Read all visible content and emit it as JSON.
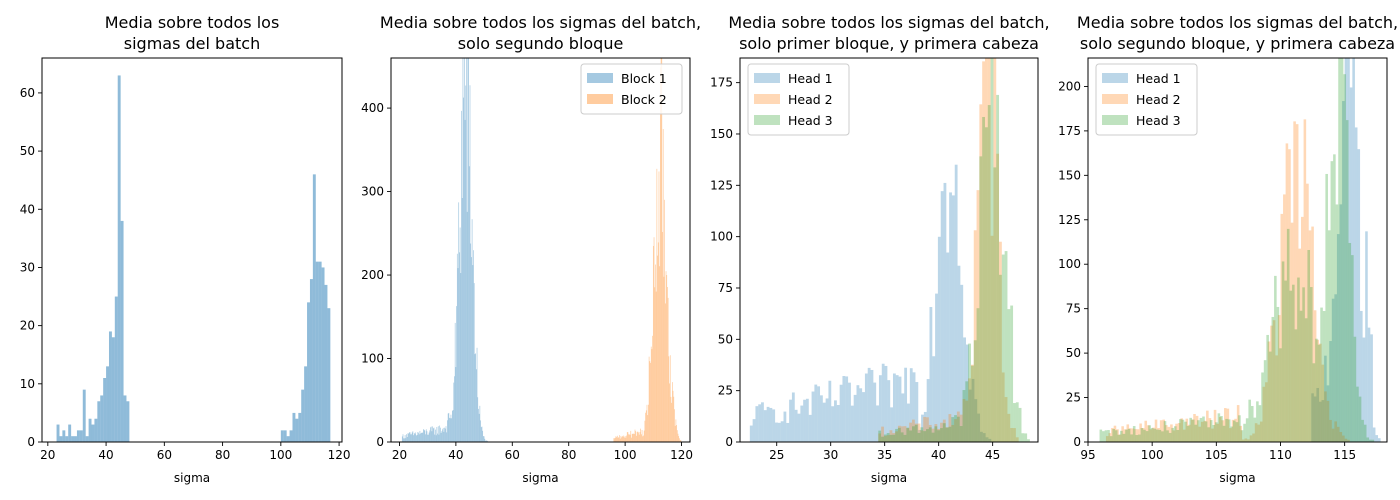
{
  "chart_data": [
    {
      "type": "histogram",
      "title": [
        "Media sobre todos los",
        "sigmas del batch"
      ],
      "xlabel": "sigma",
      "xlim": [
        18,
        121
      ],
      "ylim": [
        0,
        66
      ],
      "xticks": [
        20,
        40,
        60,
        80,
        100,
        120
      ],
      "yticks": [
        0,
        10,
        20,
        30,
        40,
        50,
        60
      ],
      "legend": null,
      "bin_width": 1,
      "series": [
        {
          "color": "#1f77b4",
          "opacity": 0.5,
          "bins": [
            [
              23.5,
              3
            ],
            [
              24.5,
              1
            ],
            [
              25.5,
              2
            ],
            [
              26.5,
              1
            ],
            [
              27.5,
              3
            ],
            [
              28.5,
              1
            ],
            [
              29.5,
              1
            ],
            [
              30.5,
              2
            ],
            [
              31.5,
              2
            ],
            [
              32.5,
              9
            ],
            [
              33.5,
              1
            ],
            [
              34.5,
              4
            ],
            [
              35.5,
              3
            ],
            [
              36.5,
              4
            ],
            [
              37.5,
              7
            ],
            [
              38.5,
              8
            ],
            [
              39.5,
              11
            ],
            [
              40.5,
              13
            ],
            [
              41.5,
              19
            ],
            [
              42.5,
              18
            ],
            [
              43.5,
              25
            ],
            [
              44.5,
              63
            ],
            [
              45.5,
              38
            ],
            [
              46.5,
              8
            ],
            [
              47.5,
              7
            ],
            [
              100.5,
              2
            ],
            [
              101.5,
              2
            ],
            [
              102.5,
              1
            ],
            [
              103.5,
              2
            ],
            [
              104.5,
              5
            ],
            [
              105.5,
              4
            ],
            [
              106.5,
              5
            ],
            [
              107.5,
              9
            ],
            [
              108.5,
              13
            ],
            [
              109.5,
              24
            ],
            [
              110.5,
              28
            ],
            [
              111.5,
              46
            ],
            [
              112.5,
              31
            ],
            [
              113.5,
              31
            ],
            [
              114.5,
              30
            ],
            [
              115.5,
              27
            ],
            [
              116.5,
              23
            ]
          ]
        }
      ]
    },
    {
      "type": "histogram",
      "title": [
        "Media sobre todos los sigmas del batch,",
        "solo segundo bloque"
      ],
      "xlabel": "sigma",
      "xlim": [
        17,
        123
      ],
      "ylim": [
        0,
        460
      ],
      "xticks": [
        20,
        40,
        60,
        80,
        100,
        120
      ],
      "yticks": [
        0,
        100,
        200,
        300,
        400
      ],
      "legend": {
        "loc": "upper right",
        "labels": [
          "Block 1",
          "Block 2"
        ]
      },
      "bin_width": 0.25,
      "series": [
        {
          "name": "Block 1",
          "color": "#1f77b4",
          "opacity": 0.4,
          "dist": [
            [
              43.5,
              2.2,
              430
            ]
          ],
          "tail": {
            "from": 21,
            "to": 38,
            "amp": 14
          }
        },
        {
          "name": "Block 2",
          "color": "#ff7f0e",
          "opacity": 0.4,
          "dist": [
            [
              112.5,
              2.3,
              330
            ]
          ],
          "tail": {
            "from": 96,
            "to": 106,
            "amp": 10
          }
        }
      ]
    },
    {
      "type": "histogram",
      "title": [
        "Media sobre todos los sigmas del batch,",
        "solo primer bloque, y primera cabeza"
      ],
      "xlabel": "sigma",
      "xlim": [
        21.6,
        49.2
      ],
      "ylim": [
        0,
        187
      ],
      "xticks": [
        25,
        30,
        35,
        40,
        45
      ],
      "yticks": [
        0,
        25,
        50,
        75,
        100,
        125,
        150,
        175
      ],
      "legend": {
        "loc": "upper left",
        "labels": [
          "Head 1",
          "Head 2",
          "Head 3"
        ]
      },
      "bin_width": 0.26,
      "series": [
        {
          "name": "Head 1",
          "color": "#1f77b4",
          "opacity": 0.3,
          "dist": [
            [
              41.0,
              1.2,
              150
            ]
          ],
          "tail": {
            "from": 22.6,
            "to": 38,
            "amp": 25
          }
        },
        {
          "name": "Head 2",
          "color": "#ff7f0e",
          "opacity": 0.3,
          "dist": [
            [
              44.6,
              0.9,
              180
            ]
          ],
          "tail": {
            "from": 34.5,
            "to": 43,
            "amp": 10
          }
        },
        {
          "name": "Head 3",
          "color": "#2ca02c",
          "opacity": 0.3,
          "dist": [
            [
              45.0,
              1.1,
              170
            ]
          ],
          "tail": {
            "from": 34.5,
            "to": 43,
            "amp": 8
          }
        }
      ]
    },
    {
      "type": "histogram",
      "title": [
        "Media sobre todos los sigmas del batch,",
        "solo segundo bloque, y primera cabeza"
      ],
      "xlabel": "sigma",
      "xlim": [
        95.0,
        118.3
      ],
      "ylim": [
        0,
        216
      ],
      "xticks": [
        95,
        100,
        105,
        110,
        115
      ],
      "yticks": [
        0,
        25,
        50,
        75,
        100,
        125,
        150,
        175,
        200
      ],
      "legend": {
        "loc": "upper left",
        "labels": [
          "Head 1",
          "Head 2",
          "Head 3"
        ]
      },
      "bin_width": 0.2,
      "series": [
        {
          "name": "Head 1",
          "color": "#1f77b4",
          "opacity": 0.3,
          "dist": [
            [
              115.3,
              0.8,
              180
            ]
          ],
          "tail": {
            "from": 112.5,
            "to": 117.2,
            "amp": 40
          }
        },
        {
          "name": "Head 2",
          "color": "#ff7f0e",
          "opacity": 0.3,
          "dist": [
            [
              111.2,
              1.3,
              150
            ]
          ],
          "tail": {
            "from": 96.5,
            "to": 107,
            "amp": 12
          }
        },
        {
          "name": "Head 3",
          "color": "#2ca02c",
          "opacity": 0.3,
          "dist": [
            [
              111.0,
              1.8,
              100
            ],
            [
              114.6,
              0.8,
              160
            ]
          ],
          "tail": {
            "from": 96,
            "to": 107,
            "amp": 10
          }
        }
      ]
    }
  ]
}
